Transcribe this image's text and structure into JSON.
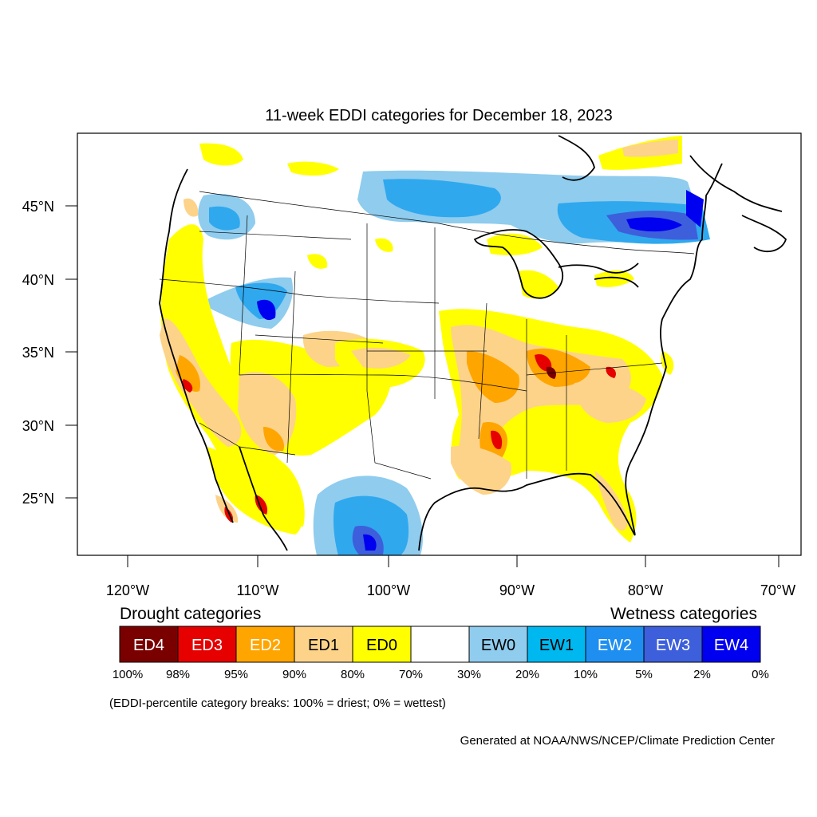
{
  "map": {
    "title": "11-week EDDI categories for December 18, 2023",
    "lat_labels": [
      "45°N",
      "40°N",
      "35°N",
      "30°N",
      "25°N"
    ],
    "lon_labels": [
      "120°W",
      "110°W",
      "100°W",
      "90°W",
      "80°W",
      "70°W"
    ]
  },
  "legend": {
    "drought_heading": "Drought categories",
    "wetness_heading": "Wetness categories",
    "categories": [
      {
        "label": "ED4",
        "color": "#7a0000",
        "text_color": "#ffffff"
      },
      {
        "label": "ED3",
        "color": "#e60000",
        "text_color": "#ffffff"
      },
      {
        "label": "ED2",
        "color": "#ffa500",
        "text_color": "#ffffff"
      },
      {
        "label": "ED1",
        "color": "#fdd38a",
        "text_color": "#000000"
      },
      {
        "label": "ED0",
        "color": "#ffff00",
        "text_color": "#000000"
      },
      {
        "label": "",
        "color": "#ffffff",
        "text_color": "#000000"
      },
      {
        "label": "EW0",
        "color": "#8fccee",
        "text_color": "#000000"
      },
      {
        "label": "EW1",
        "color": "#00b8f0",
        "text_color": "#000000"
      },
      {
        "label": "EW2",
        "color": "#1e8ff0",
        "text_color": "#ffffff"
      },
      {
        "label": "EW3",
        "color": "#3d5fdb",
        "text_color": "#ffffff"
      },
      {
        "label": "EW4",
        "color": "#0000f0",
        "text_color": "#ffffff"
      }
    ],
    "breaks": [
      "100%",
      "98%",
      "95%",
      "90%",
      "80%",
      "70%",
      "30%",
      "20%",
      "10%",
      "5%",
      "2%",
      "0%"
    ],
    "note": "(EDDI-percentile category breaks: 100% = driest; 0% = wettest)"
  },
  "credit": "Generated at NOAA/NWS/NCEP/Climate Prediction Center"
}
